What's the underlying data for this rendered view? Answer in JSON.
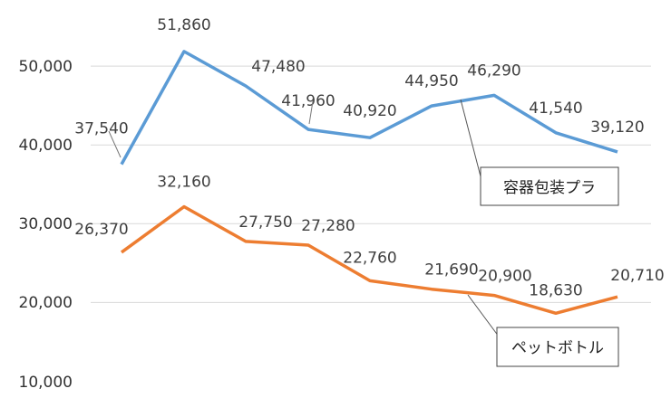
{
  "chart_data": {
    "type": "line",
    "title": "",
    "xlabel": "",
    "ylabel": "",
    "ylim": [
      10000,
      55000
    ],
    "yticks": [
      "10,000",
      "20,000",
      "30,000",
      "40,000",
      "50,000"
    ],
    "grid": true,
    "series": [
      {
        "name": "容器包装プラ",
        "color": "#5B9BD5",
        "values": [
          37540,
          51860,
          47480,
          41960,
          40920,
          44950,
          46290,
          41540,
          39120
        ],
        "labels": [
          "37,540",
          "51,860",
          "47,480",
          "41,960",
          "40,920",
          "44,950",
          "46,290",
          "41,540",
          "39,120"
        ]
      },
      {
        "name": "ペットボトル",
        "color": "#ED7D31",
        "values": [
          26370,
          32160,
          27750,
          27280,
          22760,
          21690,
          20900,
          18630,
          20710
        ],
        "labels": [
          "26,370",
          "32,160",
          "27,750",
          "27,280",
          "22,760",
          "21,690",
          "20,900",
          "18,630",
          "20,710"
        ]
      }
    ]
  }
}
